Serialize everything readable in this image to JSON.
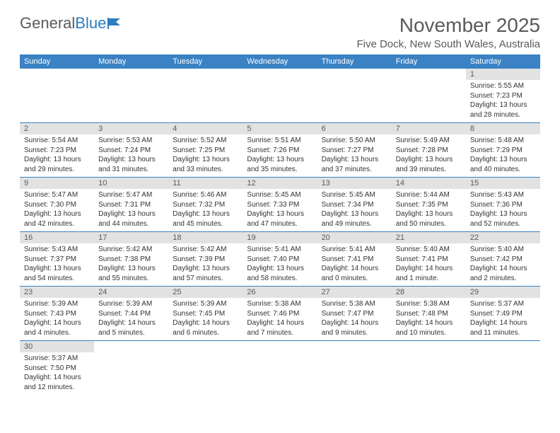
{
  "logo": {
    "text1": "General",
    "text2": "Blue"
  },
  "title": "November 2025",
  "location": "Five Dock, New South Wales, Australia",
  "day_headers": [
    "Sunday",
    "Monday",
    "Tuesday",
    "Wednesday",
    "Thursday",
    "Friday",
    "Saturday"
  ],
  "colors": {
    "header_bg": "#3a82c4",
    "header_fg": "#ffffff",
    "daynum_bg": "#e2e2e2",
    "text": "#333333",
    "rule": "#3a82c4"
  },
  "weeks": [
    [
      null,
      null,
      null,
      null,
      null,
      null,
      {
        "n": "1",
        "sunrise": "Sunrise: 5:55 AM",
        "sunset": "Sunset: 7:23 PM",
        "daylight": "Daylight: 13 hours and 28 minutes."
      }
    ],
    [
      {
        "n": "2",
        "sunrise": "Sunrise: 5:54 AM",
        "sunset": "Sunset: 7:23 PM",
        "daylight": "Daylight: 13 hours and 29 minutes."
      },
      {
        "n": "3",
        "sunrise": "Sunrise: 5:53 AM",
        "sunset": "Sunset: 7:24 PM",
        "daylight": "Daylight: 13 hours and 31 minutes."
      },
      {
        "n": "4",
        "sunrise": "Sunrise: 5:52 AM",
        "sunset": "Sunset: 7:25 PM",
        "daylight": "Daylight: 13 hours and 33 minutes."
      },
      {
        "n": "5",
        "sunrise": "Sunrise: 5:51 AM",
        "sunset": "Sunset: 7:26 PM",
        "daylight": "Daylight: 13 hours and 35 minutes."
      },
      {
        "n": "6",
        "sunrise": "Sunrise: 5:50 AM",
        "sunset": "Sunset: 7:27 PM",
        "daylight": "Daylight: 13 hours and 37 minutes."
      },
      {
        "n": "7",
        "sunrise": "Sunrise: 5:49 AM",
        "sunset": "Sunset: 7:28 PM",
        "daylight": "Daylight: 13 hours and 39 minutes."
      },
      {
        "n": "8",
        "sunrise": "Sunrise: 5:48 AM",
        "sunset": "Sunset: 7:29 PM",
        "daylight": "Daylight: 13 hours and 40 minutes."
      }
    ],
    [
      {
        "n": "9",
        "sunrise": "Sunrise: 5:47 AM",
        "sunset": "Sunset: 7:30 PM",
        "daylight": "Daylight: 13 hours and 42 minutes."
      },
      {
        "n": "10",
        "sunrise": "Sunrise: 5:47 AM",
        "sunset": "Sunset: 7:31 PM",
        "daylight": "Daylight: 13 hours and 44 minutes."
      },
      {
        "n": "11",
        "sunrise": "Sunrise: 5:46 AM",
        "sunset": "Sunset: 7:32 PM",
        "daylight": "Daylight: 13 hours and 45 minutes."
      },
      {
        "n": "12",
        "sunrise": "Sunrise: 5:45 AM",
        "sunset": "Sunset: 7:33 PM",
        "daylight": "Daylight: 13 hours and 47 minutes."
      },
      {
        "n": "13",
        "sunrise": "Sunrise: 5:45 AM",
        "sunset": "Sunset: 7:34 PM",
        "daylight": "Daylight: 13 hours and 49 minutes."
      },
      {
        "n": "14",
        "sunrise": "Sunrise: 5:44 AM",
        "sunset": "Sunset: 7:35 PM",
        "daylight": "Daylight: 13 hours and 50 minutes."
      },
      {
        "n": "15",
        "sunrise": "Sunrise: 5:43 AM",
        "sunset": "Sunset: 7:36 PM",
        "daylight": "Daylight: 13 hours and 52 minutes."
      }
    ],
    [
      {
        "n": "16",
        "sunrise": "Sunrise: 5:43 AM",
        "sunset": "Sunset: 7:37 PM",
        "daylight": "Daylight: 13 hours and 54 minutes."
      },
      {
        "n": "17",
        "sunrise": "Sunrise: 5:42 AM",
        "sunset": "Sunset: 7:38 PM",
        "daylight": "Daylight: 13 hours and 55 minutes."
      },
      {
        "n": "18",
        "sunrise": "Sunrise: 5:42 AM",
        "sunset": "Sunset: 7:39 PM",
        "daylight": "Daylight: 13 hours and 57 minutes."
      },
      {
        "n": "19",
        "sunrise": "Sunrise: 5:41 AM",
        "sunset": "Sunset: 7:40 PM",
        "daylight": "Daylight: 13 hours and 58 minutes."
      },
      {
        "n": "20",
        "sunrise": "Sunrise: 5:41 AM",
        "sunset": "Sunset: 7:41 PM",
        "daylight": "Daylight: 14 hours and 0 minutes."
      },
      {
        "n": "21",
        "sunrise": "Sunrise: 5:40 AM",
        "sunset": "Sunset: 7:41 PM",
        "daylight": "Daylight: 14 hours and 1 minute."
      },
      {
        "n": "22",
        "sunrise": "Sunrise: 5:40 AM",
        "sunset": "Sunset: 7:42 PM",
        "daylight": "Daylight: 14 hours and 2 minutes."
      }
    ],
    [
      {
        "n": "23",
        "sunrise": "Sunrise: 5:39 AM",
        "sunset": "Sunset: 7:43 PM",
        "daylight": "Daylight: 14 hours and 4 minutes."
      },
      {
        "n": "24",
        "sunrise": "Sunrise: 5:39 AM",
        "sunset": "Sunset: 7:44 PM",
        "daylight": "Daylight: 14 hours and 5 minutes."
      },
      {
        "n": "25",
        "sunrise": "Sunrise: 5:39 AM",
        "sunset": "Sunset: 7:45 PM",
        "daylight": "Daylight: 14 hours and 6 minutes."
      },
      {
        "n": "26",
        "sunrise": "Sunrise: 5:38 AM",
        "sunset": "Sunset: 7:46 PM",
        "daylight": "Daylight: 14 hours and 7 minutes."
      },
      {
        "n": "27",
        "sunrise": "Sunrise: 5:38 AM",
        "sunset": "Sunset: 7:47 PM",
        "daylight": "Daylight: 14 hours and 9 minutes."
      },
      {
        "n": "28",
        "sunrise": "Sunrise: 5:38 AM",
        "sunset": "Sunset: 7:48 PM",
        "daylight": "Daylight: 14 hours and 10 minutes."
      },
      {
        "n": "29",
        "sunrise": "Sunrise: 5:37 AM",
        "sunset": "Sunset: 7:49 PM",
        "daylight": "Daylight: 14 hours and 11 minutes."
      }
    ],
    [
      {
        "n": "30",
        "sunrise": "Sunrise: 5:37 AM",
        "sunset": "Sunset: 7:50 PM",
        "daylight": "Daylight: 14 hours and 12 minutes."
      },
      null,
      null,
      null,
      null,
      null,
      null
    ]
  ]
}
